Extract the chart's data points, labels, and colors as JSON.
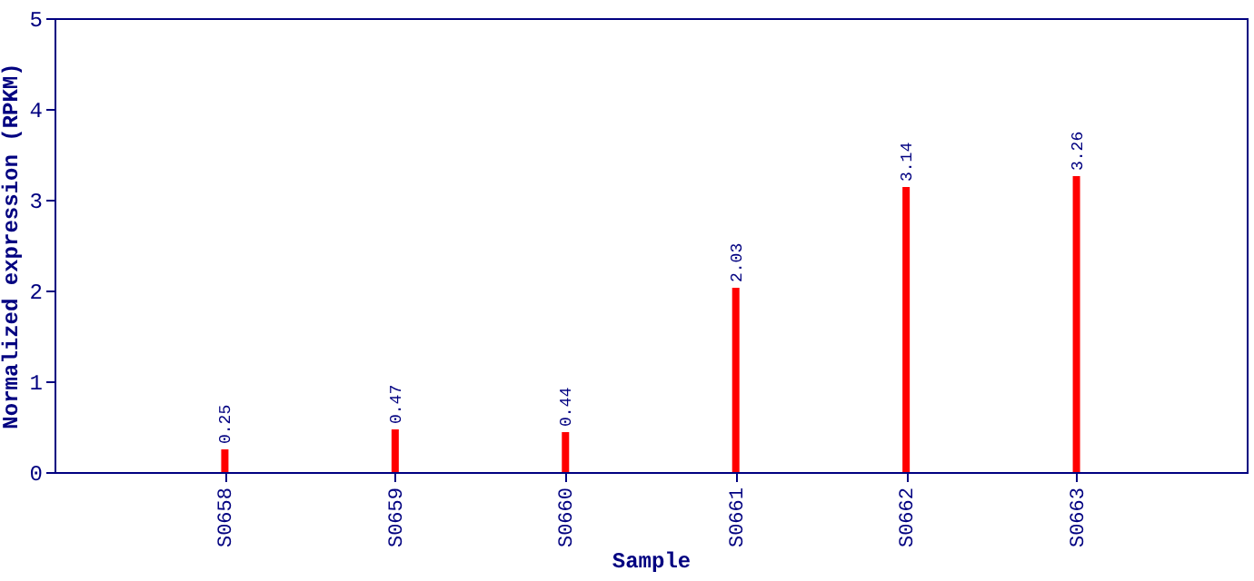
{
  "chart_data": {
    "type": "bar",
    "xlabel": "Sample",
    "ylabel": "Normalized expression (RPKM)",
    "categories": [
      "S0658",
      "S0659",
      "S0660",
      "S0661",
      "S0662",
      "S0663"
    ],
    "values": [
      0.25,
      0.47,
      0.44,
      2.03,
      3.14,
      3.26
    ],
    "color": "#ff0000",
    "ylim": [
      0,
      5
    ],
    "yticks": [
      0,
      1,
      2,
      3,
      4,
      5
    ],
    "data_labels": true
  }
}
